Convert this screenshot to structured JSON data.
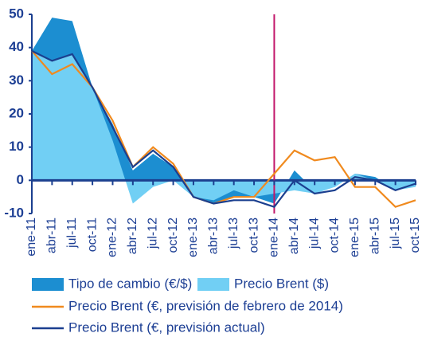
{
  "chart_data": {
    "type": "area-line",
    "categories": [
      "ene-11",
      "abr-11",
      "jul-11",
      "oct-11",
      "ene-12",
      "abr-12",
      "jul-12",
      "oct-12",
      "ene-13",
      "abr-13",
      "jul-13",
      "oct-13",
      "ene-14",
      "abr-14",
      "jul-14",
      "oct-14",
      "ene-15",
      "abr-15",
      "jul-15",
      "oct-15"
    ],
    "series": [
      {
        "name": "Tipo de cambio (€/$)",
        "kind": "area",
        "color": "#1c8ed1",
        "values": [
          39,
          49,
          48,
          28,
          17,
          3,
          8,
          4,
          -5,
          -7,
          -5,
          -5,
          -7,
          3,
          -3,
          -2,
          2,
          1,
          -3,
          0
        ]
      },
      {
        "name": "Precio Brent ($)",
        "kind": "area",
        "color": "#71cff4",
        "values": [
          39,
          36,
          38,
          28,
          12,
          -7,
          -2,
          0,
          -5,
          -6,
          -3,
          -5,
          -4,
          -3,
          -4,
          -2,
          2,
          0,
          -3,
          -2
        ]
      },
      {
        "name": "Precio Brent (€, previsión de febrero de 2014)",
        "kind": "line",
        "color": "#f08a1e",
        "values": [
          39,
          32,
          35,
          28,
          18,
          4,
          10,
          5,
          -5,
          -7,
          -5,
          -5,
          2,
          9,
          6,
          7,
          -2,
          -2,
          -8,
          -6
        ]
      },
      {
        "name": "Precio Brent (€, previsión actual)",
        "kind": "line",
        "color": "#1b3f8f",
        "values": [
          39,
          36,
          38,
          28,
          16,
          4,
          9,
          4,
          -5,
          -7,
          -6,
          -6,
          -8,
          0,
          -4,
          -3,
          1,
          0,
          -3,
          -1
        ]
      }
    ],
    "ylim": [
      -10,
      50
    ],
    "yticks": [
      -10,
      0,
      10,
      20,
      30,
      40,
      50
    ],
    "vline_at": "ene-14",
    "vline_color": "#c2186b"
  }
}
